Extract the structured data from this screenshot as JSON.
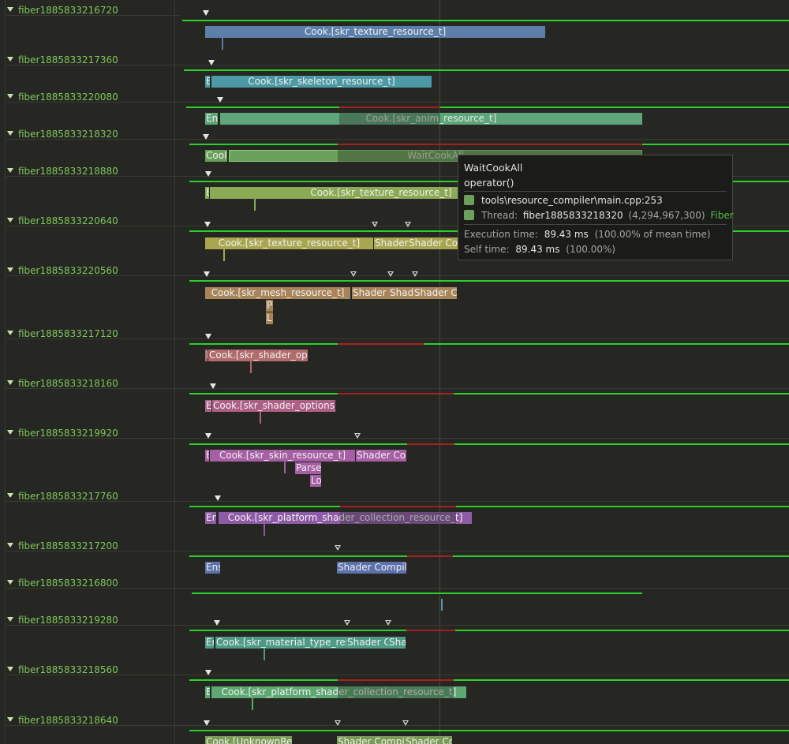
{
  "colors": {
    "background": "#262622",
    "lane_label": "#7ec85d",
    "running": "#2bd12b",
    "waiting": "#a52121",
    "tooltip_bg": "#1b1b19",
    "fiber_tag": "#4fbf40"
  },
  "icons": {
    "lane_expand": "triangle-down-icon",
    "context_switch": "triangle-marker-icon",
    "color_swatch": "square-swatch-icon"
  },
  "lanes": [
    {
      "label": "fiber1885833216720"
    },
    {
      "label": "fiber1885833217360"
    },
    {
      "label": "fiber1885833220080"
    },
    {
      "label": "fiber1885833218320"
    },
    {
      "label": "fiber1885833218880"
    },
    {
      "label": "fiber1885833220640"
    },
    {
      "label": "fiber1885833220560"
    },
    {
      "label": "fiber1885833217120"
    },
    {
      "label": "fiber1885833218160"
    },
    {
      "label": "fiber1885833219920"
    },
    {
      "label": "fiber1885833217760"
    },
    {
      "label": "fiber1885833217200"
    },
    {
      "label": "fiber1885833216800"
    },
    {
      "label": "fiber1885833219280"
    },
    {
      "label": "fiber1885833218560"
    },
    {
      "label": "fiber1885833218640"
    }
  ],
  "zones": {
    "z1": "Cook.[skr_texture_resource_t]",
    "z2a": "E",
    "z2b": "Cook.[skr_skeleton_resource_t]",
    "z3a": "En",
    "z3b": "Cook.[skr_anim_resource_t]",
    "z4a": "Cool",
    "z4b": "WaitCookAll",
    "z5a": "E",
    "z5b": "Cook.[skr_texture_resource_t]",
    "z6a": "Cook.[skr_texture_resource_t]",
    "z6b": "Shader",
    "z6c": "Shader Co",
    "z7a": "Cook.[skr_mesh_resource_t]",
    "z7b": "Shader",
    "z7c": "Shad",
    "z7d": "Shader C",
    "z7e": "P",
    "z7f": "L",
    "z8a": "I",
    "z8b": "Cook.[skr_shader_options_resource_t]",
    "z9a": "E",
    "z9b": "Cook.[skr_shader_options_resource_t]",
    "z10a": "E",
    "z10b": "Cook.[skr_skin_resource_t]",
    "z10c": "Shader Co",
    "z10d": "Parse",
    "z10e": "Lo",
    "z11a": "En",
    "z11b": "Cook.[skr_platform_shader_collection_resource_t]",
    "z12a": "Ens",
    "z12b": "Shader Compil",
    "z14a": "Er",
    "z14b": "Cook.[skr_material_type_res",
    "z14c": "Shader C",
    "z14d": "Sha",
    "z15a": "E",
    "z15b": "Cook.[skr_platform_shader_collection_resource_t]",
    "z16a": "Cook.[UnknownRe",
    "z16b": "Shader Compi",
    "z16c": "Shader Co"
  },
  "tooltip": {
    "title": "WaitCookAll",
    "function": "operator()",
    "source": "tools\\resource_compiler\\main.cpp:253",
    "thread_label": "Thread:",
    "thread_name": "fiber1885833218320",
    "thread_id": "(4,294,967,300)",
    "thread_kind": "Fiber",
    "exec_label": "Execution time:",
    "exec_value": "89.43 ms",
    "exec_pct": "(100.00% of mean time)",
    "self_label": "Self time:",
    "self_value": "89.43 ms",
    "self_pct": "(100.00%)"
  }
}
